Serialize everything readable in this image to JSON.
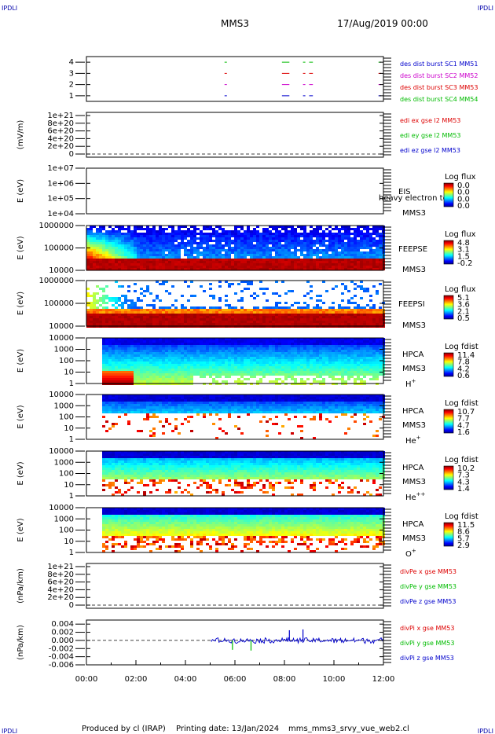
{
  "header": {
    "corner_label": "IPDLI",
    "title": "MMS3",
    "date": "17/Aug/2019 00:00"
  },
  "footer": {
    "produced_by": "Produced by cl (IRAP)",
    "printing_date": "Printing date: 13/Jan/2024",
    "file": "mms_mms3_srvy_vue_web2.cl"
  },
  "time_axis": {
    "range_hours": [
      0,
      12
    ],
    "tick_labels": [
      "00:00",
      "02:00",
      "04:00",
      "06:00",
      "08:00",
      "10:00",
      "12:00"
    ]
  },
  "chart_data": [
    {
      "type": "line",
      "id": "burst",
      "ylabel": "",
      "ylim": [
        0.5,
        4.5
      ],
      "y_ticks": [
        "1",
        "2",
        "3",
        "4"
      ],
      "series": [
        {
          "name": "des dist burst SC1 MM51",
          "color": "#0000cc",
          "level": 1
        },
        {
          "name": "des dist burst SC2 MM52",
          "color": "#cc00cc",
          "level": 2
        },
        {
          "name": "des dist burst SC3 MM53",
          "color": "#dd0000",
          "level": 3
        },
        {
          "name": "des dist burst SC4 MM54",
          "color": "#00bb00",
          "level": 4
        }
      ],
      "burst_intervals_hours": [
        [
          5.58,
          5.64
        ],
        [
          7.9,
          8.2
        ],
        [
          8.75,
          8.82
        ],
        [
          9.0,
          9.15
        ],
        [
          11.8,
          11.9
        ]
      ]
    },
    {
      "type": "line",
      "id": "edi",
      "ylabel": "(mV/m)",
      "y_ticks": [
        "0",
        "2e+20",
        "4e+20",
        "6e+20",
        "8e+20",
        "1e+21"
      ],
      "series": [
        {
          "name": "edi ex gse l2 MM53",
          "color": "#dd0000"
        },
        {
          "name": "edi ey gse l2 MM53",
          "color": "#00bb00"
        },
        {
          "name": "edi ez gse l2 MM53",
          "color": "#0000cc"
        }
      ]
    },
    {
      "type": "heatmap",
      "id": "eis",
      "ylabel": "E (eV)",
      "y_scale": "log",
      "ylim": [
        10000,
        10000000
      ],
      "y_ticks": [
        "1e+04",
        "1e+05",
        "1e+06",
        "1e+07"
      ],
      "side_labels": [
        "EIS",
        "MMS3"
      ],
      "overlay_text": "heavy electron to",
      "colorbar_title": "Log flux",
      "colorbar_ticks": [
        "0.0",
        "0.0",
        "0.0",
        "0.0"
      ],
      "data_start_hour": null,
      "description": "no data"
    },
    {
      "type": "heatmap",
      "id": "feepse",
      "ylabel": "E (eV)",
      "y_scale": "log",
      "ylim": [
        10000,
        1000000
      ],
      "y_ticks": [
        "10000",
        "100000",
        "1000000"
      ],
      "side_labels": [
        "FEEPSE",
        "MMS3"
      ],
      "colorbar_title": "Log flux",
      "colorbar_ticks": [
        "4.8",
        "3.1",
        "1.5",
        "-0.2"
      ],
      "data_start_hour": 0
    },
    {
      "type": "heatmap",
      "id": "feepsi",
      "ylabel": "E (eV)",
      "y_scale": "log",
      "ylim": [
        10000,
        1000000
      ],
      "y_ticks": [
        "10000",
        "100000",
        "1000000"
      ],
      "side_labels": [
        "FEEPSI",
        "MMS3"
      ],
      "colorbar_title": "Log flux",
      "colorbar_ticks": [
        "5.1",
        "3.6",
        "2.1",
        "0.5"
      ],
      "data_start_hour": 0
    },
    {
      "type": "heatmap",
      "id": "hpca_h",
      "ylabel": "E (eV)",
      "y_scale": "log",
      "ylim": [
        1,
        10000
      ],
      "y_ticks": [
        "1",
        "10",
        "100",
        "1000",
        "10000"
      ],
      "side_labels": [
        "HPCA",
        "MMS3"
      ],
      "species": "H",
      "species_sup": "+",
      "colorbar_title": "Log fdist",
      "colorbar_ticks": [
        "11.4",
        "7.8",
        "4.2",
        "0.6"
      ],
      "data_start_hour": 0.65
    },
    {
      "type": "heatmap",
      "id": "hpca_he",
      "ylabel": "E (eV)",
      "y_scale": "log",
      "ylim": [
        1,
        10000
      ],
      "y_ticks": [
        "1",
        "10",
        "100",
        "1000",
        "10000"
      ],
      "side_labels": [
        "HPCA",
        "MMS3"
      ],
      "species": "He",
      "species_sup": "+",
      "colorbar_title": "Log fdist",
      "colorbar_ticks": [
        "10.7",
        "7.7",
        "4.7",
        "1.6"
      ],
      "data_start_hour": 0.65
    },
    {
      "type": "heatmap",
      "id": "hpca_hepp",
      "ylabel": "E (eV)",
      "y_scale": "log",
      "ylim": [
        1,
        10000
      ],
      "y_ticks": [
        "1",
        "10",
        "100",
        "1000",
        "10000"
      ],
      "side_labels": [
        "HPCA",
        "MMS3"
      ],
      "species": "He",
      "species_sup": "++",
      "colorbar_title": "Log fdist",
      "colorbar_ticks": [
        "10.2",
        "7.3",
        "4.3",
        "1.4"
      ],
      "data_start_hour": 0.65
    },
    {
      "type": "heatmap",
      "id": "hpca_o",
      "ylabel": "E (eV)",
      "y_scale": "log",
      "ylim": [
        1,
        10000
      ],
      "y_ticks": [
        "1",
        "10",
        "100",
        "1000",
        "10000"
      ],
      "side_labels": [
        "HPCA",
        "MMS3"
      ],
      "species": "O",
      "species_sup": "+",
      "colorbar_title": "Log fdist",
      "colorbar_ticks": [
        "11.5",
        "8.6",
        "5.7",
        "2.9"
      ],
      "data_start_hour": 0.65
    },
    {
      "type": "line",
      "id": "divpe",
      "ylabel": "(nPa/km)",
      "y_ticks": [
        "0",
        "2e+20",
        "4e+20",
        "6e+20",
        "8e+20",
        "1e+21"
      ],
      "series": [
        {
          "name": "divPe x gse MM53",
          "color": "#dd0000"
        },
        {
          "name": "divPe y gse MM53",
          "color": "#00bb00"
        },
        {
          "name": "divPe z gse MM53",
          "color": "#0000cc"
        }
      ]
    },
    {
      "type": "line",
      "id": "divpi",
      "ylabel": "(nPa/km)",
      "ylim": [
        -0.006,
        0.005
      ],
      "y_ticks": [
        "-0.006",
        "-0.004",
        "-0.002",
        "0.000",
        "0.002",
        "0.004"
      ],
      "data_start_hour": 5.05,
      "series": [
        {
          "name": "divPi x gse MM53",
          "color": "#dd0000"
        },
        {
          "name": "divPi y gse MM53",
          "color": "#00bb00"
        },
        {
          "name": "divPi z gse MM53",
          "color": "#0000cc"
        }
      ],
      "spikes": [
        {
          "hour": 5.9,
          "value": -0.0023,
          "series": "y"
        },
        {
          "hour": 6.65,
          "value": -0.0025,
          "series": "y"
        },
        {
          "hour": 8.2,
          "value": 0.0025,
          "series": "z"
        },
        {
          "hour": 8.75,
          "value": 0.0027,
          "series": "z"
        }
      ]
    }
  ]
}
